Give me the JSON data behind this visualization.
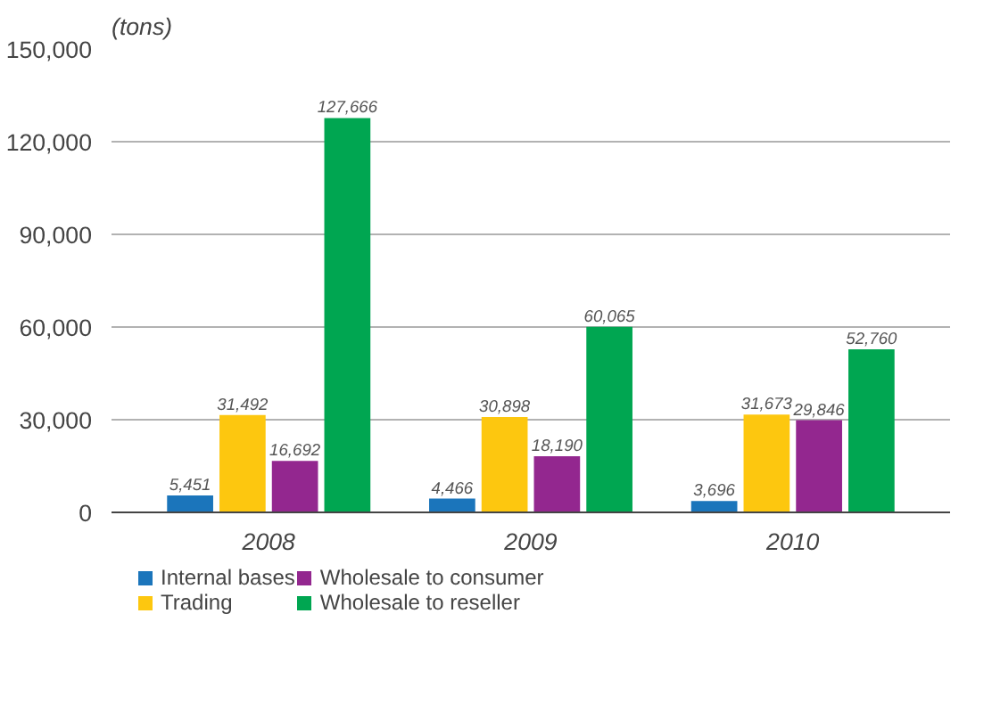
{
  "chart_data": {
    "type": "bar",
    "ylabel": "(tons)",
    "categories": [
      "2008",
      "2009",
      "2010"
    ],
    "series": [
      {
        "name": "Internal bases",
        "color": "#1b75bb",
        "values": [
          5451,
          4466,
          3696
        ],
        "value_labels": [
          "5,451",
          "4,466",
          "3,696"
        ]
      },
      {
        "name": "Trading",
        "color": "#fdc70f",
        "values": [
          31492,
          30898,
          31673
        ],
        "value_labels": [
          "31,492",
          "30,898",
          "31,673"
        ]
      },
      {
        "name": "Wholesale to consumer",
        "color": "#93278f",
        "values": [
          16692,
          18190,
          29846
        ],
        "value_labels": [
          "16,692",
          "18,190",
          "29,846"
        ]
      },
      {
        "name": "Wholesale to reseller",
        "color": "#00a651",
        "values": [
          127666,
          60065,
          52760
        ],
        "value_labels": [
          "127,666",
          "60,065",
          "52,760"
        ]
      }
    ],
    "ylim": [
      0,
      150000
    ],
    "yticks": [
      {
        "value": 0,
        "label": "0"
      },
      {
        "value": 30000,
        "label": "30,000"
      },
      {
        "value": 60000,
        "label": "60,000"
      },
      {
        "value": 90000,
        "label": "90,000"
      },
      {
        "value": 120000,
        "label": "120,000"
      },
      {
        "value": 150000,
        "label": "150,000"
      }
    ],
    "grid": "y",
    "legend": "bottom",
    "data_labels": true
  }
}
